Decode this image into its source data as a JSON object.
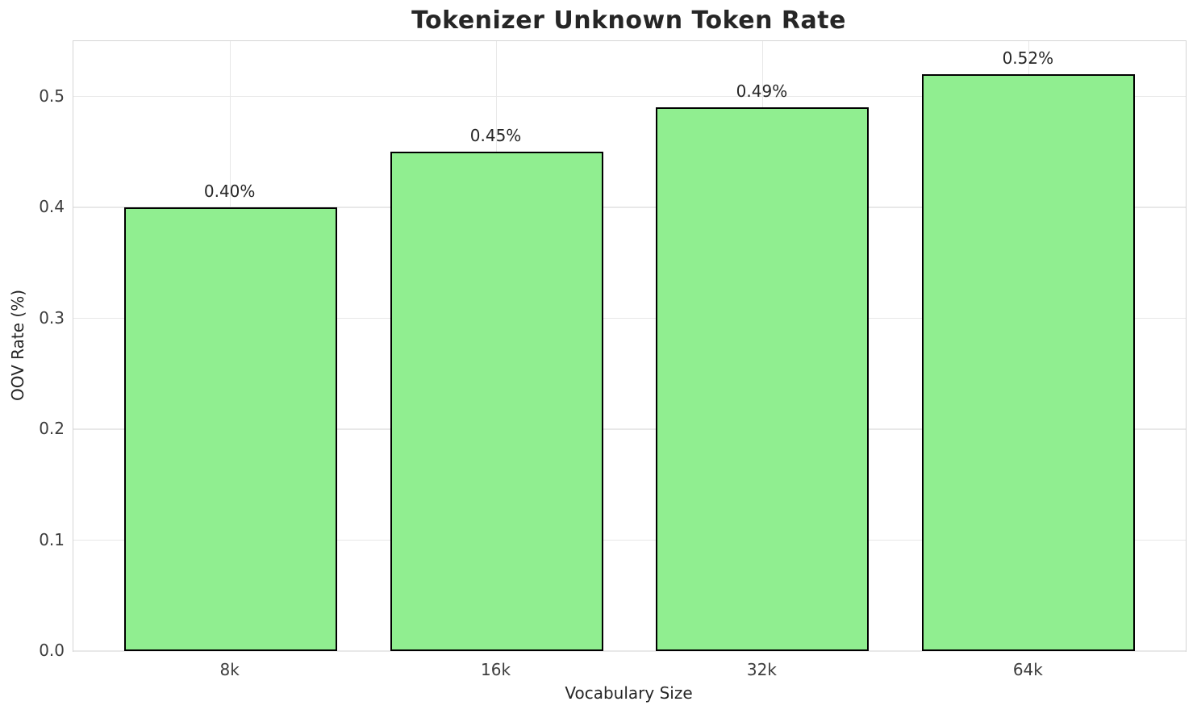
{
  "chart_data": {
    "type": "bar",
    "title": "Tokenizer Unknown Token Rate",
    "xlabel": "Vocabulary Size",
    "ylabel": "OOV Rate (%)",
    "categories": [
      "8k",
      "16k",
      "32k",
      "64k"
    ],
    "values": [
      0.4,
      0.45,
      0.49,
      0.52
    ],
    "bar_labels": [
      "0.40%",
      "0.45%",
      "0.49%",
      "0.52%"
    ],
    "yticks": [
      0.0,
      0.1,
      0.2,
      0.3,
      0.4,
      0.5
    ],
    "ytick_labels": [
      "0.0",
      "0.1",
      "0.2",
      "0.3",
      "0.4",
      "0.5"
    ],
    "ylim": [
      0,
      0.55
    ],
    "grid": "both",
    "legend": "none",
    "bar_color": "#90EE90",
    "bar_edge_color": "#000000",
    "grid_color": "#E8E8E8",
    "spine_color": "#D5D5D5",
    "title_color": "#262626",
    "tick_color": "#3D3D3D"
  }
}
